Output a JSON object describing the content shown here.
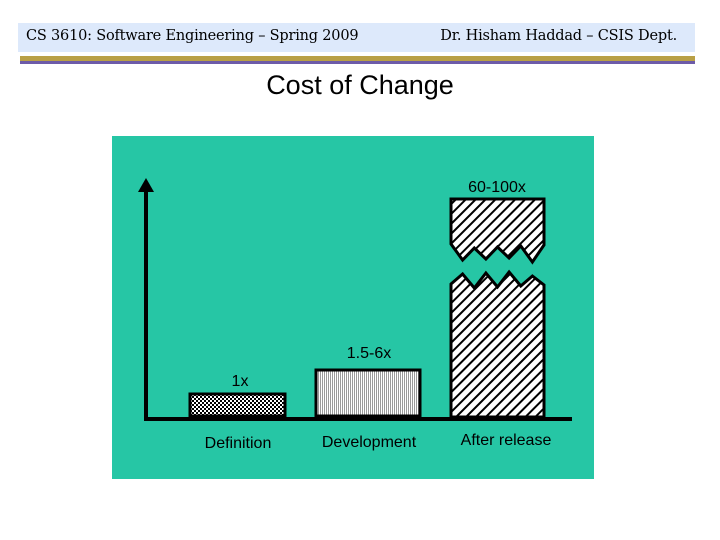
{
  "header": {
    "course": "CS 3610: Software Engineering – Spring 2009",
    "instructor": "Dr. Hisham Haddad – CSIS Dept."
  },
  "slide": {
    "title": "Cost of Change"
  },
  "colors": {
    "header_bg": "#dde9fb",
    "rule_gold": "#b9a046",
    "rule_purple": "#6d5ba8",
    "figure_bg": "#26c6a5"
  },
  "chart_data": {
    "type": "bar",
    "title": "",
    "xlabel": "",
    "ylabel": "",
    "categories": [
      "Definition",
      "Development",
      "After release"
    ],
    "value_labels": [
      "1x",
      "1.5-6x",
      "60-100x"
    ],
    "relative_heights": [
      0.1,
      0.21,
      1.0
    ],
    "axis_break_on": "After release",
    "grid": false,
    "legend": false
  }
}
